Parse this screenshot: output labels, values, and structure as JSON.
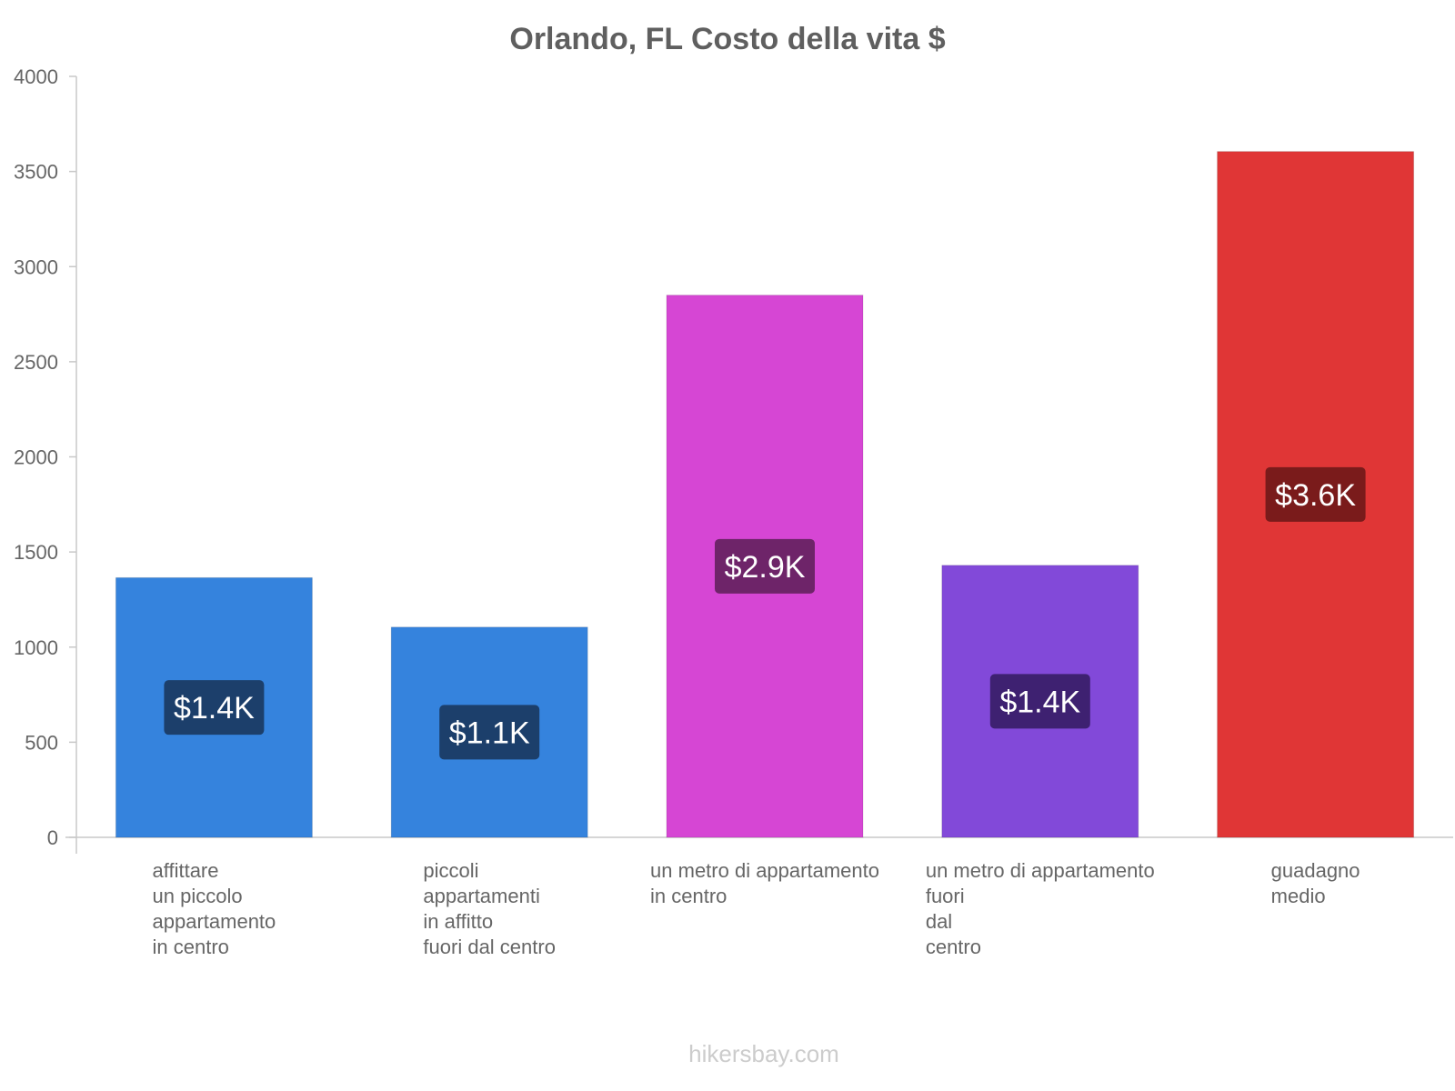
{
  "chart_data": {
    "type": "bar",
    "title": "Orlando, FL Costo della vita $",
    "categories": [
      [
        "affittare",
        "un piccolo",
        "appartamento",
        "in centro"
      ],
      [
        "piccoli",
        "appartamenti",
        "in affitto",
        "fuori dal centro"
      ],
      [
        "un metro di appartamento",
        "in centro"
      ],
      [
        "un metro di appartamento",
        "fuori",
        "dal",
        "centro"
      ],
      [
        "guadagno",
        "medio"
      ]
    ],
    "values": [
      1365,
      1105,
      2850,
      1430,
      3605
    ],
    "value_labels": [
      "$1.4K",
      "$1.1K",
      "$2.9K",
      "$1.4K",
      "$3.6K"
    ],
    "colors": [
      "#3583dd",
      "#3583dd",
      "#d646d4",
      "#8249d9",
      "#e03636"
    ],
    "label_bg_colors": [
      "#1c3f6b",
      "#1c3f6b",
      "#6e2469",
      "#3e2171",
      "#7a1b1b"
    ],
    "yticks": [
      0,
      500,
      1000,
      1500,
      2000,
      2500,
      3000,
      3500,
      4000
    ],
    "ylim": [
      0,
      4000
    ],
    "xlabel": "",
    "ylabel": "",
    "grid": false,
    "watermark": "hikersbay.com"
  }
}
